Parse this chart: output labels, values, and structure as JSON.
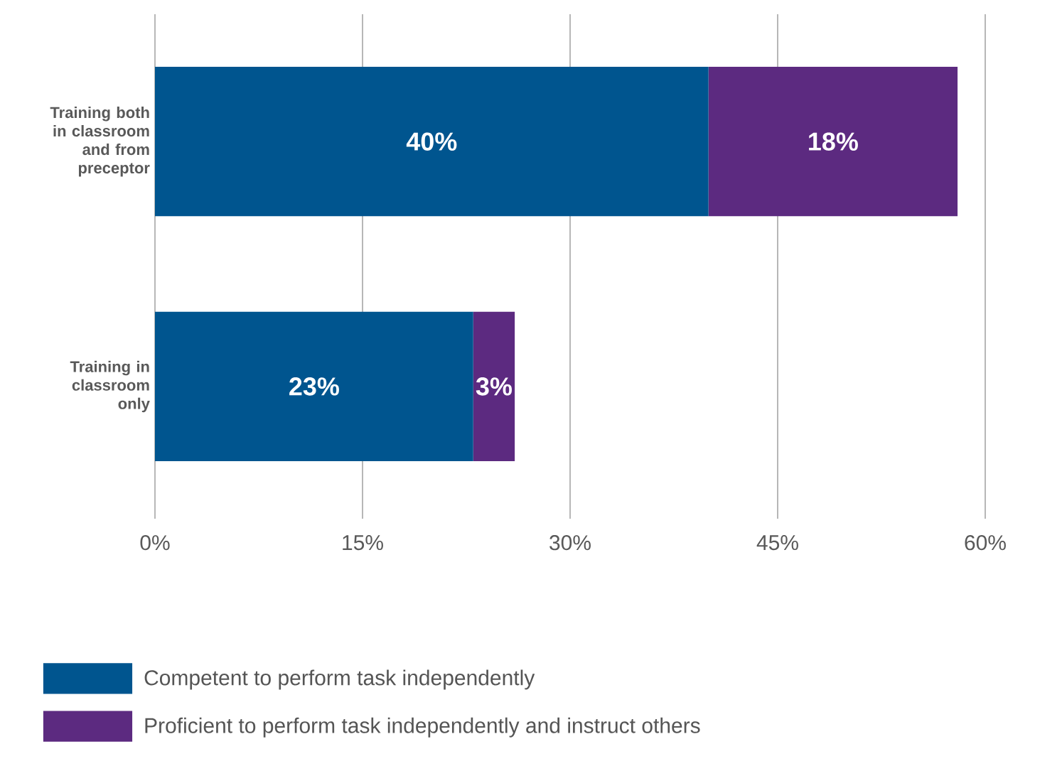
{
  "chart_data": {
    "type": "bar",
    "orientation": "horizontal",
    "stacked": true,
    "categories": [
      "Training both in classroom and from preceptor",
      "Training in classroom only"
    ],
    "series": [
      {
        "name": "Competent to perform task independently",
        "color": "#00558f",
        "values": [
          40,
          23
        ],
        "value_labels": [
          "40%",
          "23%"
        ]
      },
      {
        "name": "Proficient to perform task independently and instruct others",
        "color": "#5c2a80",
        "values": [
          18,
          3
        ],
        "value_labels": [
          "18%",
          "3%"
        ]
      }
    ],
    "xlim": [
      0,
      60
    ],
    "xticks": [
      {
        "value": 0,
        "label": "0%"
      },
      {
        "value": 15,
        "label": "15%"
      },
      {
        "value": 30,
        "label": "30%"
      },
      {
        "value": 45,
        "label": "45%"
      },
      {
        "value": 60,
        "label": "60%"
      }
    ],
    "grid": "x",
    "legend": "bottom"
  }
}
